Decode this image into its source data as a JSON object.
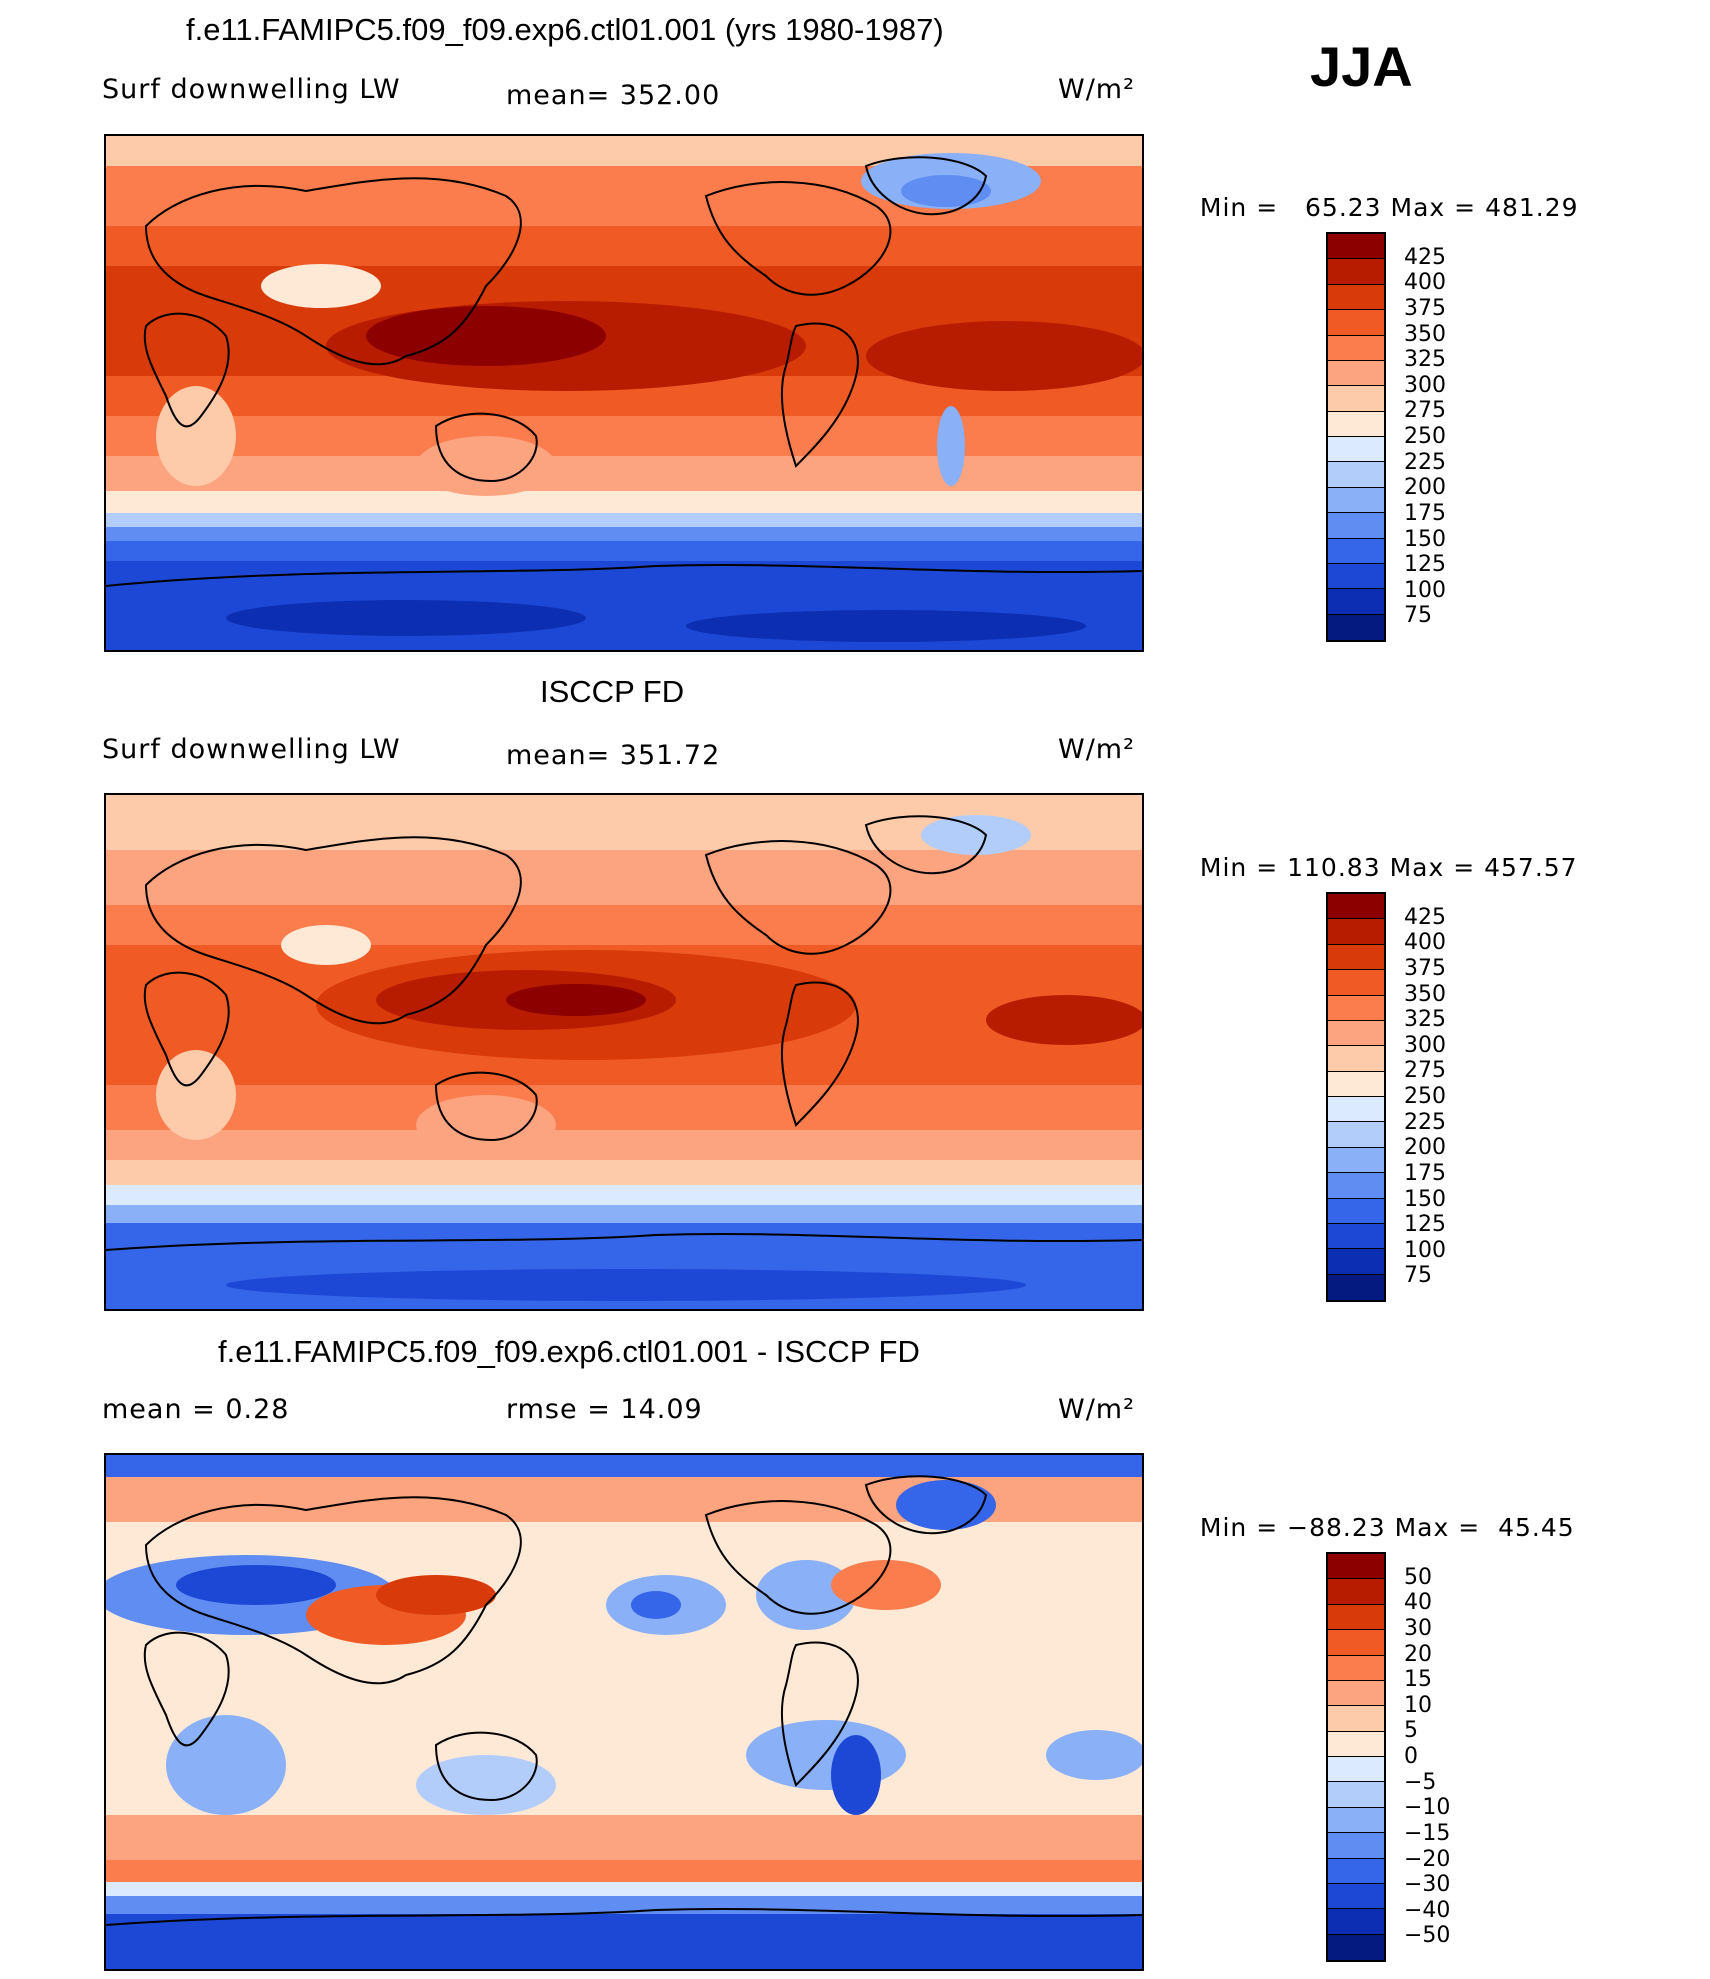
{
  "season": "JJA",
  "panels": [
    {
      "title": "f.e11.FAMIPC5.f09_f09.exp6.ctl01.001 (yrs 1980-1987)",
      "left_label": "Surf downwelling LW",
      "center_label": "mean= 352.00",
      "units": "W/m²",
      "min_label": "Min =",
      "min_value": "65.23",
      "max_label": "Max =",
      "max_value": "481.29",
      "levels": [
        "425",
        "400",
        "375",
        "350",
        "325",
        "300",
        "275",
        "250",
        "225",
        "200",
        "175",
        "150",
        "125",
        "100",
        "75"
      ],
      "colors": [
        "#8c0000",
        "#b81c00",
        "#d93a0a",
        "#f05a25",
        "#fb7c4c",
        "#fca380",
        "#fdcaaa",
        "#fee9d6",
        "#dbeaff",
        "#b3cdfb",
        "#8ab0f7",
        "#5f8df2",
        "#3565e8",
        "#1d48d6",
        "#0c2eb2",
        "#041a80"
      ],
      "stats": {
        "mean": 352.0,
        "min": 65.23,
        "max": 481.29
      }
    },
    {
      "title": "ISCCP FD",
      "left_label": "Surf downwelling LW",
      "center_label": "mean= 351.72",
      "units": "W/m²",
      "min_label": "Min =",
      "min_value": "110.83",
      "max_label": "Max =",
      "max_value": "457.57",
      "levels": [
        "425",
        "400",
        "375",
        "350",
        "325",
        "300",
        "275",
        "250",
        "225",
        "200",
        "175",
        "150",
        "125",
        "100",
        "75"
      ],
      "colors": [
        "#8c0000",
        "#b81c00",
        "#d93a0a",
        "#f05a25",
        "#fb7c4c",
        "#fca380",
        "#fdcaaa",
        "#fee9d6",
        "#dbeaff",
        "#b3cdfb",
        "#8ab0f7",
        "#5f8df2",
        "#3565e8",
        "#1d48d6",
        "#0c2eb2",
        "#041a80"
      ],
      "stats": {
        "mean": 351.72,
        "min": 110.83,
        "max": 457.57
      }
    },
    {
      "title": "f.e11.FAMIPC5.f09_f09.exp6.ctl01.001 - ISCCP FD",
      "left_label": "mean =    0.28",
      "center_label": "rmse =    14.09",
      "units": "W/m²",
      "min_label": "Min =",
      "min_value": "−88.23",
      "max_label": "Max =",
      "max_value": "45.45",
      "levels": [
        "50",
        "40",
        "30",
        "20",
        "15",
        "10",
        "5",
        "0",
        "−5",
        "−10",
        "−15",
        "−20",
        "−30",
        "−40",
        "−50"
      ],
      "colors": [
        "#8c0000",
        "#b81c00",
        "#d93a0a",
        "#f05a25",
        "#fb7c4c",
        "#fca380",
        "#fdcaaa",
        "#fee9d6",
        "#dbeaff",
        "#b3cdfb",
        "#8ab0f7",
        "#5f8df2",
        "#3565e8",
        "#1d48d6",
        "#0c2eb2",
        "#041a80"
      ],
      "stats": {
        "mean": 0.28,
        "rmse": 14.09,
        "min": -88.23,
        "max": 45.45
      }
    }
  ]
}
